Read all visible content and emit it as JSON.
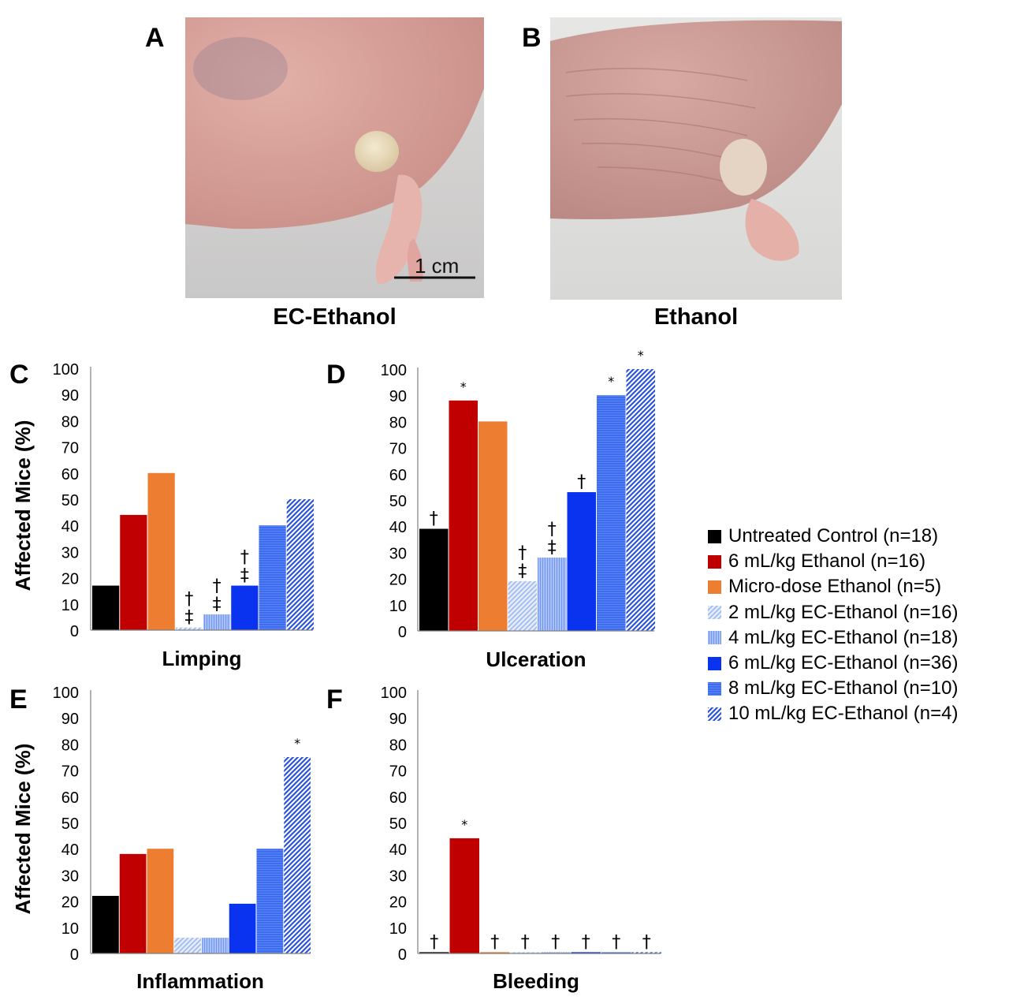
{
  "photos": {
    "a": {
      "letter": "A",
      "caption": "EC-Ethanol",
      "scale_bar_label": "1 cm"
    },
    "b": {
      "letter": "B",
      "caption": "Ethanol"
    }
  },
  "groups": [
    {
      "name": "Untreated Control (n=18)",
      "color": "#000000",
      "pattern": "solid"
    },
    {
      "name": "6 mL/kg Ethanol (n=16)",
      "color": "#c00000",
      "pattern": "solid"
    },
    {
      "name": "Micro-dose Ethanol (n=5)",
      "color": "#ed7d31",
      "pattern": "solid"
    },
    {
      "name": "2 mL/kg EC-Ethanol (n=16)",
      "color": "#9db8f0",
      "pattern": "diagonal-light"
    },
    {
      "name": "4 mL/kg EC-Ethanol (n=18)",
      "color": "#6f96f2",
      "pattern": "vertical-light"
    },
    {
      "name": "6 mL/kg EC-Ethanol (n=36)",
      "color": "#0a33f0",
      "pattern": "solid"
    },
    {
      "name": "8 mL/kg EC-Ethanol (n=10)",
      "color": "#3d6cf0",
      "pattern": "dense"
    },
    {
      "name": "10 mL/kg EC-Ethanol (n=4)",
      "color": "#2a53e0",
      "pattern": "diagonal-dark"
    }
  ],
  "chart_data": [
    {
      "panel": "C",
      "type": "bar",
      "title": "Limping",
      "ylabel": "Affected Mice (%)",
      "ylim": [
        0,
        100
      ],
      "yticks": [
        "0",
        "10",
        "20",
        "30",
        "40",
        "50",
        "60",
        "70",
        "80",
        "90",
        "100"
      ],
      "values": [
        17,
        44,
        60,
        1,
        6,
        17,
        40,
        50
      ],
      "annotations": [
        "",
        "",
        "",
        "†\n‡",
        "†\n‡",
        "†\n‡",
        "",
        ""
      ]
    },
    {
      "panel": "D",
      "type": "bar",
      "title": "Ulceration",
      "ylabel": "",
      "ylim": [
        0,
        100
      ],
      "yticks": [
        "0",
        "10",
        "20",
        "30",
        "40",
        "50",
        "60",
        "70",
        "80",
        "90",
        "100"
      ],
      "values": [
        39,
        88,
        80,
        19,
        28,
        53,
        90,
        100
      ],
      "annotations": [
        "†",
        "*",
        "",
        "†\n‡",
        "†\n‡",
        "†",
        "*",
        "*"
      ]
    },
    {
      "panel": "E",
      "type": "bar",
      "title": "Inflammation",
      "ylabel": "Affected Mice (%)",
      "ylim": [
        0,
        100
      ],
      "yticks": [
        "0",
        "10",
        "20",
        "30",
        "40",
        "50",
        "60",
        "70",
        "80",
        "90",
        "100"
      ],
      "values": [
        22,
        38,
        40,
        6,
        6,
        19,
        40,
        75
      ],
      "annotations": [
        "",
        "",
        "",
        "",
        "",
        "",
        "",
        "*"
      ]
    },
    {
      "panel": "F",
      "type": "bar",
      "title": "Bleeding",
      "ylabel": "",
      "ylim": [
        0,
        100
      ],
      "yticks": [
        "0",
        "10",
        "20",
        "30",
        "40",
        "50",
        "60",
        "70",
        "80",
        "90",
        "100"
      ],
      "values": [
        0.5,
        44,
        0.5,
        0.5,
        0.5,
        0.5,
        0.5,
        0.5
      ],
      "annotations": [
        "†",
        "*",
        "†",
        "†",
        "†",
        "†",
        "†",
        "†"
      ]
    }
  ]
}
